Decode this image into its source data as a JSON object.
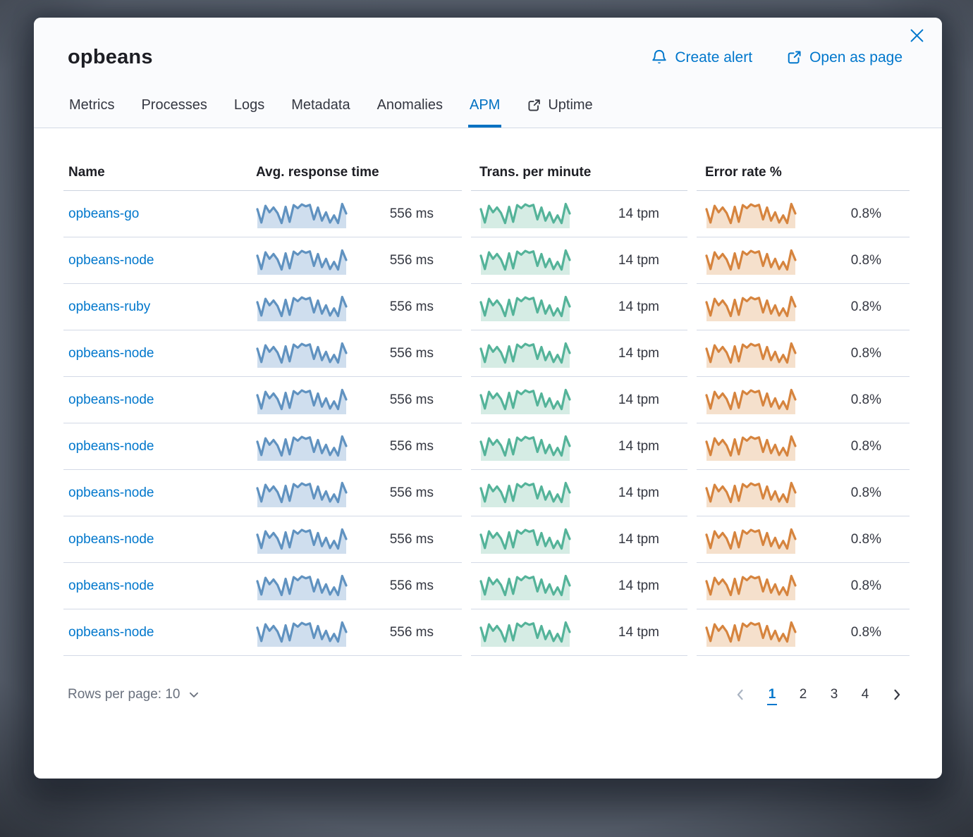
{
  "title": "opbeans",
  "actions": {
    "create_alert": "Create alert",
    "open_as_page": "Open as page"
  },
  "tabs": [
    {
      "label": "Metrics",
      "selected": false,
      "external": false
    },
    {
      "label": "Processes",
      "selected": false,
      "external": false
    },
    {
      "label": "Logs",
      "selected": false,
      "external": false
    },
    {
      "label": "Metadata",
      "selected": false,
      "external": false
    },
    {
      "label": "Anomalies",
      "selected": false,
      "external": false
    },
    {
      "label": "APM",
      "selected": true,
      "external": false
    },
    {
      "label": "Uptime",
      "selected": false,
      "external": true
    }
  ],
  "table": {
    "columns": [
      "Name",
      "Avg. response time",
      "Trans. per minute",
      "Error rate %"
    ],
    "rows": [
      {
        "name": "opbeans-go",
        "avg_response_time": "556 ms",
        "trans_per_minute": "14 tpm",
        "error_rate": "0.8%"
      },
      {
        "name": "opbeans-node",
        "avg_response_time": "556 ms",
        "trans_per_minute": "14 tpm",
        "error_rate": "0.8%"
      },
      {
        "name": "opbeans-ruby",
        "avg_response_time": "556 ms",
        "trans_per_minute": "14 tpm",
        "error_rate": "0.8%"
      },
      {
        "name": "opbeans-node",
        "avg_response_time": "556 ms",
        "trans_per_minute": "14 tpm",
        "error_rate": "0.8%"
      },
      {
        "name": "opbeans-node",
        "avg_response_time": "556 ms",
        "trans_per_minute": "14 tpm",
        "error_rate": "0.8%"
      },
      {
        "name": "opbeans-node",
        "avg_response_time": "556 ms",
        "trans_per_minute": "14 tpm",
        "error_rate": "0.8%"
      },
      {
        "name": "opbeans-node",
        "avg_response_time": "556 ms",
        "trans_per_minute": "14 tpm",
        "error_rate": "0.8%"
      },
      {
        "name": "opbeans-node",
        "avg_response_time": "556 ms",
        "trans_per_minute": "14 tpm",
        "error_rate": "0.8%"
      },
      {
        "name": "opbeans-node",
        "avg_response_time": "556 ms",
        "trans_per_minute": "14 tpm",
        "error_rate": "0.8%"
      },
      {
        "name": "opbeans-node",
        "avg_response_time": "556 ms",
        "trans_per_minute": "14 tpm",
        "error_rate": "0.8%"
      }
    ]
  },
  "sparkline": {
    "values": [
      0.68,
      0.12,
      0.82,
      0.55,
      0.75,
      0.52,
      0.1,
      0.78,
      0.15,
      0.85,
      0.72,
      0.88,
      0.8,
      0.86,
      0.25,
      0.75,
      0.2,
      0.55,
      0.12,
      0.42,
      0.1,
      0.9,
      0.5
    ],
    "series": [
      {
        "column": "Avg. response time",
        "line": "#6092c0",
        "fill": "#cfdeee"
      },
      {
        "column": "Trans. per minute",
        "line": "#54b399",
        "fill": "#d5ece4"
      },
      {
        "column": "Error rate %",
        "line": "#d6843e",
        "fill": "#f5e0cc"
      }
    ]
  },
  "footer": {
    "rows_per_page_label": "Rows per page: 10",
    "pages": [
      "1",
      "2",
      "3",
      "4"
    ],
    "active_page": "1"
  },
  "icons": {
    "header": [
      "bell-icon",
      "popout-icon",
      "close-icon"
    ],
    "tab_uptime": "popout-icon",
    "footer": [
      "chevron-down-icon",
      "chevron-left-icon",
      "chevron-right-icon"
    ]
  },
  "colors": {
    "accent": "#0077cc",
    "tab_selected": "#0071c2",
    "text": "#343741",
    "heading": "#1d1e24",
    "muted": "#69707d",
    "divider": "#d3dae6",
    "disabled_chevron": "#a9b3c1"
  }
}
